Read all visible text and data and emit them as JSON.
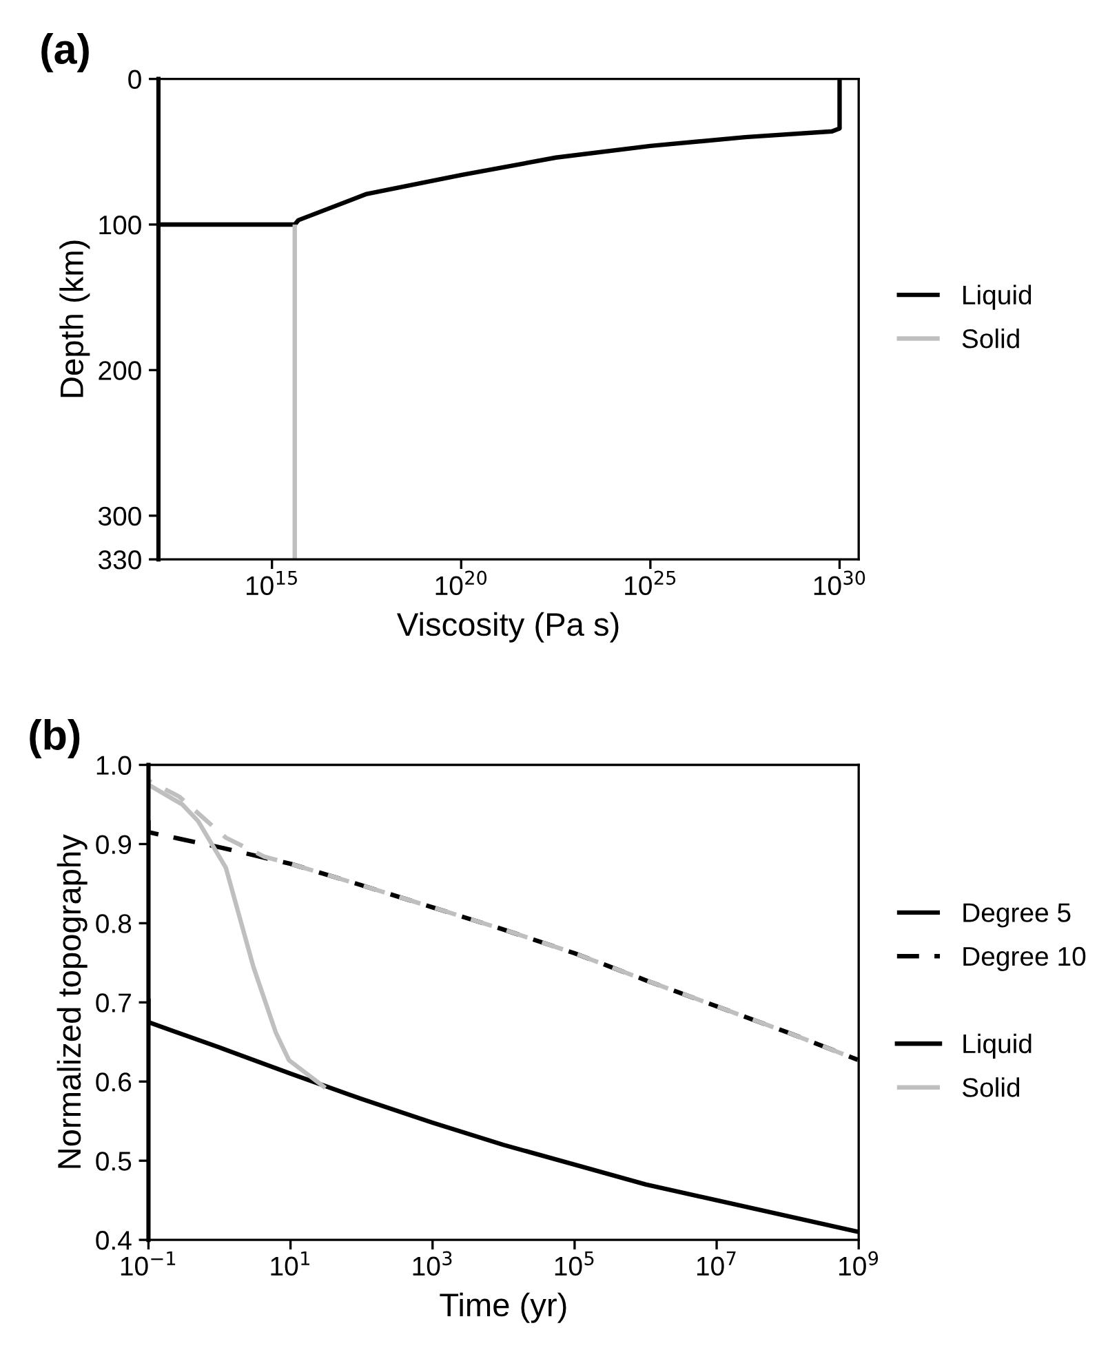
{
  "chart_data": [
    {
      "type": "line",
      "title": "(a)",
      "xlabel": "Viscosity (Pa s)",
      "ylabel": "Depth (km)",
      "log": "x",
      "legend": "right",
      "grid": false,
      "xlim": [
        1000000000000.0,
        3.2e+30
      ],
      "ylim": [
        330,
        0
      ],
      "xticks": [
        {
          "value": 1000000000000000.0,
          "label": "10$^{15}$"
        },
        {
          "value": 1e+20,
          "label": "10$^{20}$"
        },
        {
          "value": 1e+25,
          "label": "10$^{25}$"
        },
        {
          "value": 1e+30,
          "label": "10$^{30}$"
        }
      ],
      "yticks": [
        0,
        100,
        200,
        300,
        330
      ],
      "series": [
        {
          "name": "Liquid",
          "color": "#000000",
          "line_style": "solid",
          "x": [
            1000000000000.0,
            4000000000000000.0,
            5000000000000000.0,
            3.2e+17,
            1e+20,
            3.2e+22,
            1e+25,
            3.2e+27,
            6.3e+29,
            1e+30,
            1e+30
          ],
          "values": [
            100,
            100,
            97,
            79,
            66,
            54,
            46,
            40,
            36,
            34,
            0
          ]
        },
        {
          "name": "Solid",
          "color": "#bfbfbf",
          "line_style": "solid",
          "x": [
            4000000000000000.0,
            4000000000000000.0
          ],
          "values": [
            100,
            330
          ]
        }
      ]
    },
    {
      "type": "line",
      "title": "(b)",
      "xlabel": "Time (yr)",
      "ylabel": "Normalized topography",
      "log": "x",
      "legend": "right",
      "grid": false,
      "xlim": [
        0.1,
        1000000000.0
      ],
      "ylim": [
        0.4,
        1.0
      ],
      "xticks": [
        {
          "value": 0.1,
          "label": "10$^{−1}$"
        },
        {
          "value": 10,
          "label": "10$^{1}$"
        },
        {
          "value": 1000,
          "label": "10$^{3}$"
        },
        {
          "value": 100000,
          "label": "10$^{5}$"
        },
        {
          "value": 10000000,
          "label": "10$^{7}$"
        },
        {
          "value": 1000000000,
          "label": "10$^{9}$"
        }
      ],
      "yticks": [
        {
          "value": 0.4,
          "label": "0.4"
        },
        {
          "value": 0.5,
          "label": "0.5"
        },
        {
          "value": 0.6,
          "label": "0.6"
        },
        {
          "value": 0.7,
          "label": "0.7"
        },
        {
          "value": 0.8,
          "label": "0.8"
        },
        {
          "value": 0.9,
          "label": "0.9"
        },
        {
          "value": 1.0,
          "label": "1.0"
        }
      ],
      "annotations": [
        "Liquid"
      ],
      "series": [
        {
          "name": "Degree 5",
          "color": "#000000",
          "line_style": "solid",
          "x": [
            0.1,
            0.1,
            1,
            10,
            100,
            1000,
            10000,
            100000,
            1000000,
            10000000,
            100000000,
            1000000000
          ],
          "values": [
            0.705,
            0.675,
            0.643,
            0.61,
            0.578,
            0.548,
            0.52,
            0.495,
            0.47,
            0.45,
            0.43,
            0.41
          ]
        },
        {
          "name": "Degree 10",
          "color": "#000000",
          "line_style": "dashed",
          "x": [
            0.1,
            0.1,
            1,
            10,
            100,
            1000,
            10000,
            100000,
            1000000,
            10000000,
            100000000,
            1000000000
          ],
          "values": [
            0.93,
            0.915,
            0.896,
            0.875,
            0.848,
            0.82,
            0.792,
            0.762,
            0.728,
            0.695,
            0.662,
            0.627
          ]
        },
        {
          "name": "Solid",
          "color": "#bfbfbf",
          "line_style": "solid",
          "x": [
            0.1,
            0.3,
            0.5,
            1.23,
            3.0,
            6.2,
            9.5,
            31
          ],
          "values": [
            0.975,
            0.95,
            0.929,
            0.87,
            0.745,
            0.662,
            0.627,
            0.592
          ]
        },
        {
          "color": "#bfbfbf",
          "line_style": "dashed",
          "x": [
            0.1,
            0.27,
            1.23,
            4.3,
            10,
            100,
            1000,
            10000,
            100000,
            1000000,
            10000000,
            100000000,
            1000000000
          ],
          "values": [
            0.98,
            0.96,
            0.908,
            0.884,
            0.875,
            0.848,
            0.82,
            0.792,
            0.762,
            0.728,
            0.695,
            0.662,
            0.627
          ]
        }
      ]
    }
  ]
}
